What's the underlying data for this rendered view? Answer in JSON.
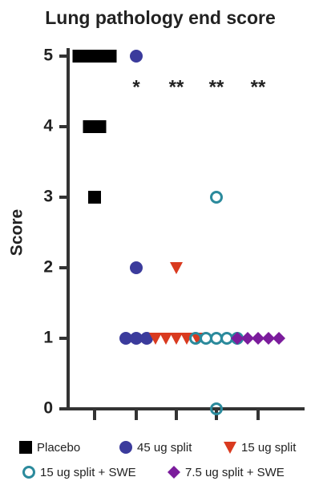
{
  "chart_data": {
    "type": "dotplot",
    "title": "Lung pathology end score",
    "y_label": "Score",
    "ylim": [
      0,
      5
    ],
    "yticks": [
      0,
      1,
      2,
      3,
      4,
      5
    ],
    "series": [
      {
        "name": "Placebo",
        "color": "#000000",
        "marker": "square",
        "values": [
          5,
          5,
          5,
          5,
          4,
          4,
          3
        ]
      },
      {
        "name": "45 ug split",
        "color": "#3b3b9c",
        "marker": "circle",
        "values": [
          5,
          2,
          1,
          1,
          1
        ],
        "annotation": "*"
      },
      {
        "name": "15 ug split",
        "color": "#d93a1f",
        "marker": "triangle-down",
        "values": [
          2,
          1,
          1,
          1,
          1,
          1
        ],
        "annotation": "**"
      },
      {
        "name": "15 ug split + SWE",
        "color": "#2b8a9c",
        "marker": "open-circle",
        "values": [
          3,
          1,
          1,
          1,
          1,
          1,
          0
        ],
        "annotation": "**"
      },
      {
        "name": "7.5 ug split + SWE",
        "color": "#7b1c9c",
        "marker": "diamond",
        "values": [
          1,
          1,
          1,
          1,
          1
        ],
        "annotation": "**"
      }
    ]
  }
}
